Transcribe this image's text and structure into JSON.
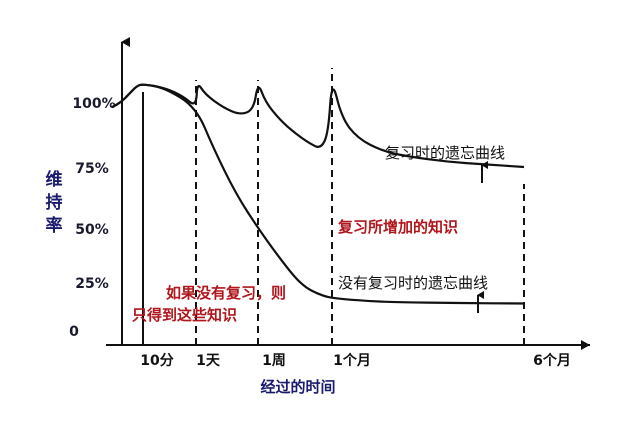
{
  "chart_data": {
    "type": "line",
    "ylabel": "维持率",
    "xlabel": "经过的时间",
    "y_ticks": [
      "100%",
      "75%",
      "50%",
      "25%",
      "0"
    ],
    "y_tick_values": [
      100,
      75,
      50,
      25,
      0
    ],
    "x_ticks": [
      "10分",
      "1天",
      "1周",
      "1个月",
      "6个月"
    ],
    "ylim": [
      0,
      112
    ],
    "grid": false,
    "legend": "none",
    "series": [
      {
        "name": "没有复习时的遗忘曲线",
        "points": [
          [
            0.0,
            98
          ],
          [
            0.3,
            100
          ],
          [
            0.55,
            104
          ],
          [
            0.8,
            108
          ],
          [
            1.0,
            109
          ],
          [
            1.25,
            107
          ],
          [
            1.6,
            98
          ],
          [
            2.0,
            82
          ],
          [
            2.5,
            64
          ],
          [
            3.0,
            50
          ],
          [
            3.5,
            38
          ],
          [
            4.0,
            27
          ],
          [
            4.3,
            22
          ],
          [
            4.6,
            19
          ],
          [
            4.9,
            17
          ],
          [
            5.2,
            16
          ],
          [
            5.6,
            15
          ],
          [
            6.0,
            14.5
          ],
          [
            7.0,
            14
          ],
          [
            8.0,
            13.8
          ]
        ],
        "color": "#111111"
      },
      {
        "name": "复习时的遗忘曲线",
        "points": [
          [
            0.0,
            98
          ],
          [
            0.3,
            100
          ],
          [
            0.55,
            104
          ],
          [
            0.8,
            108
          ],
          [
            1.0,
            109
          ],
          [
            1.25,
            107
          ],
          [
            1.45,
            103
          ],
          [
            1.6,
            98
          ],
          [
            1.63,
            110
          ],
          [
            1.8,
            104
          ],
          [
            2.2,
            98
          ],
          [
            2.6,
            95
          ],
          [
            2.9,
            97
          ],
          [
            3.0,
            110
          ],
          [
            3.2,
            100
          ],
          [
            3.6,
            93
          ],
          [
            4.0,
            88
          ],
          [
            4.4,
            84
          ],
          [
            4.7,
            82
          ],
          [
            4.9,
            88
          ],
          [
            5.0,
            112
          ],
          [
            5.15,
            94
          ],
          [
            5.4,
            86
          ],
          [
            5.8,
            81
          ],
          [
            6.2,
            79
          ],
          [
            6.8,
            77
          ],
          [
            7.4,
            76
          ],
          [
            8.0,
            75
          ]
        ],
        "color": "#111111"
      }
    ],
    "annotations": [
      {
        "text": "复习时的遗忘曲线",
        "color": "#111111"
      },
      {
        "text": "复习所增加的知识",
        "color": "#b0161c"
      },
      {
        "text": "没有复习时的遗忘曲线",
        "color": "#111111"
      },
      {
        "text": "如果没有复习，则",
        "color": "#b0161c"
      },
      {
        "text": "只得到这些知识",
        "color": "#b0161c"
      }
    ],
    "colors": {
      "axis": "#111111",
      "curve": "#111111",
      "ylabel": "#1a1a6e",
      "ticks": "#1a1a2e",
      "red_text": "#b0161c"
    }
  }
}
